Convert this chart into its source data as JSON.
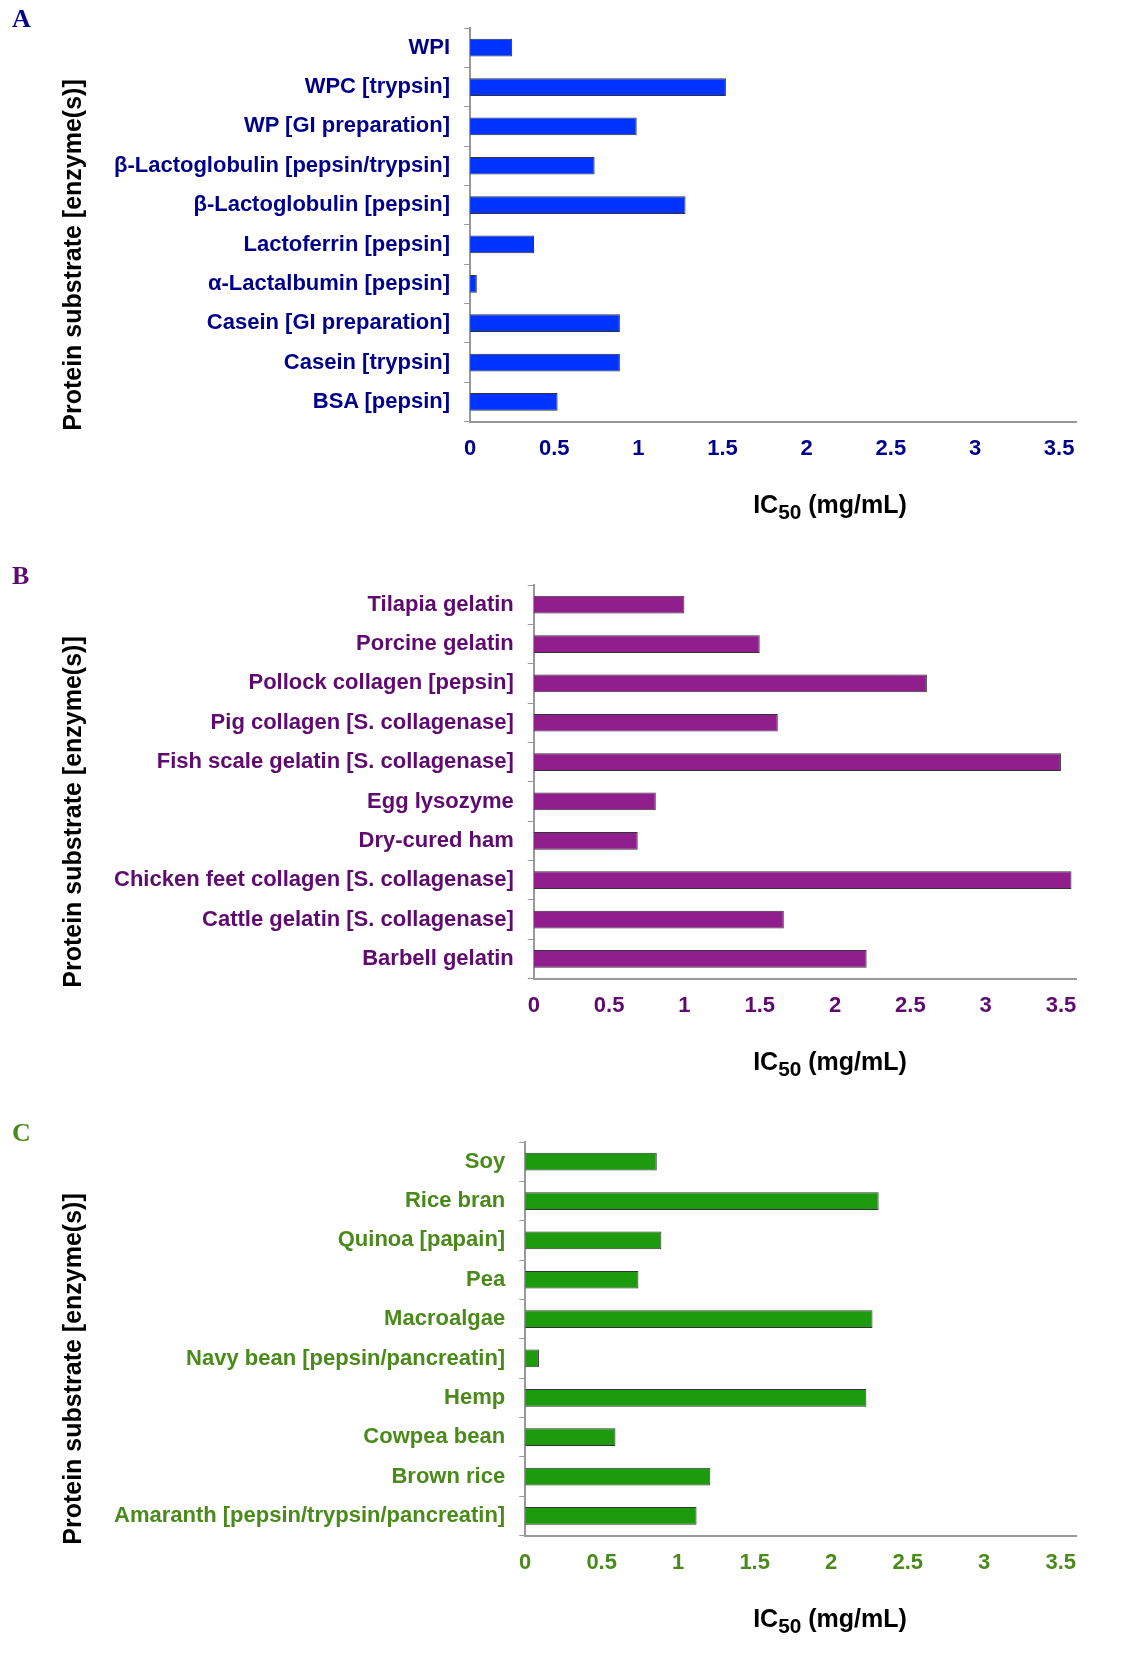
{
  "chart_data": [
    {
      "type": "bar",
      "orientation": "horizontal",
      "annotations": [
        "A"
      ],
      "xlabel": "IC$_{50}$ (mg/mL)",
      "ylabel": "Protein substrate [enzyme(s)]",
      "categories": [
        "WPI",
        "WPC [trypsin]",
        "WP [GI preparation]",
        "β-Lactoglobulin [pepsin/trypsin]",
        "β-Lactoglobulin [pepsin]",
        "Lactoferrin [pepsin]",
        "α-Lactalbumin [pepsin]",
        "Casein [GI preparation]",
        "Casein [trypsin]",
        "BSA [pepsin]"
      ],
      "values": [
        0.25,
        1.52,
        0.99,
        0.74,
        1.28,
        0.38,
        0.04,
        0.89,
        0.89,
        0.52
      ],
      "color": "#0033ff",
      "xlim": [
        0,
        3.6
      ],
      "xticks": [
        0,
        0.5,
        1,
        1.5,
        2,
        2.5,
        3,
        3.5
      ]
    },
    {
      "type": "bar",
      "orientation": "horizontal",
      "annotations": [
        "B"
      ],
      "xlabel": "IC$_{50}$ (mg/mL)",
      "ylabel": "Protein substrate [enzyme(s)]",
      "categories": [
        "Tilapia gelatin",
        "Porcine gelatin",
        "Pollock collagen [pepsin]",
        "Pig collagen [S. collagenase]",
        "Fish scale gelatin [S. collagenase]",
        "Egg lysozyme",
        "Dry-cured ham",
        "Chicken feet collagen [S. collagenase]",
        "Cattle gelatin [S. collagenase]",
        "Barbell gelatin"
      ],
      "values": [
        1.0,
        1.5,
        2.61,
        1.62,
        3.5,
        0.81,
        0.69,
        3.57,
        1.66,
        2.21
      ],
      "color": "#901e8c",
      "xlim": [
        0,
        3.6
      ],
      "xticks": [
        0,
        0.5,
        1,
        1.5,
        2,
        2.5,
        3,
        3.5
      ]
    },
    {
      "type": "bar",
      "orientation": "horizontal",
      "annotations": [
        "C"
      ],
      "xlabel": "IC$_{50}$ (mg/mL)",
      "ylabel": "Protein substrate [enzyme(s)]",
      "categories": [
        "Soy",
        "Rice bran",
        "Quinoa [papain]",
        "Pea",
        "Macroalgae",
        "Navy bean [pepsin/pancreatin]",
        "Hemp",
        "Cowpea bean",
        "Brown rice",
        "Amaranth [pepsin/trypsin/pancreatin]"
      ],
      "values": [
        0.86,
        2.31,
        0.89,
        0.74,
        2.27,
        0.09,
        2.23,
        0.59,
        1.21,
        1.12
      ],
      "color": "#1e9a0e",
      "xlim": [
        0,
        3.6
      ],
      "xticks": [
        0,
        0.5,
        1,
        1.5,
        2,
        2.5,
        3,
        3.5
      ]
    }
  ]
}
